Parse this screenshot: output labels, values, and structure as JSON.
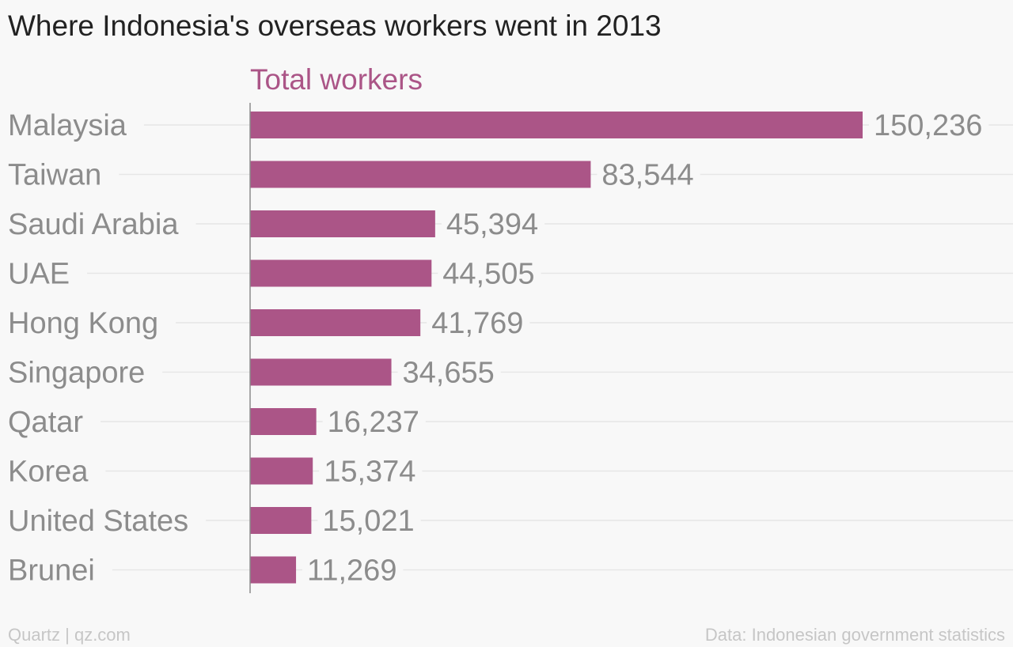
{
  "chart_data": {
    "type": "bar",
    "orientation": "horizontal",
    "title": "Where Indonesia's overseas workers went in 2013",
    "series": [
      {
        "name": "Total workers",
        "values": [
          150236,
          83544,
          45394,
          44505,
          41769,
          34655,
          16237,
          15374,
          15021,
          11269
        ],
        "labels": [
          "150,236",
          "83,544",
          "45,394",
          "44,505",
          "41,769",
          "34,655",
          "16,237",
          "15,374",
          "15,021",
          "11,269"
        ]
      }
    ],
    "categories": [
      "Malaysia",
      "Taiwan",
      "Saudi Arabia",
      "UAE",
      "Hong Kong",
      "Singapore",
      "Qatar",
      "Korea",
      "United States",
      "Brunei"
    ],
    "xlim": [
      0,
      150236
    ],
    "grid": true,
    "legend": "none"
  },
  "footer": {
    "source_left": "Quartz | qz.com",
    "source_right": "Data: Indonesian government statistics"
  },
  "colors": {
    "bar": "#ab5587",
    "series_label": "#ab5587",
    "category_label": "#8c8c8c",
    "value_label": "#8c8c8c",
    "gridline": "#e6e6e6",
    "axis": "#8c8c8c"
  }
}
